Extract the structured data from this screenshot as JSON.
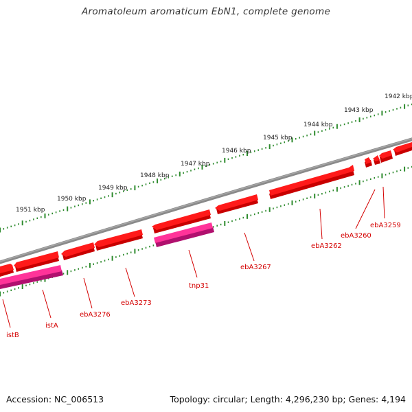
{
  "title": "Aromatoleum aromaticum EbN1, complete genome",
  "footer": {
    "accession": "Accession: NC_006513",
    "summary": "Topology: circular; Length: 4,296,230 bp; Genes: 4,194"
  },
  "scale_ticks": [
    "1942 kbp",
    "1943 kbp",
    "1944 kbp",
    "1945 kbp",
    "1946 kbp",
    "1947 kbp",
    "1948 kbp",
    "1949 kbp",
    "1950 kbp",
    "1951 kbp"
  ],
  "gene_labels": [
    "ebA3259",
    "ebA3260",
    "ebA3262",
    "ebA3267",
    "tnp31",
    "ebA3273",
    "ebA3276",
    "istA",
    "istB"
  ],
  "colors": {
    "backbone": "#7a7a7a",
    "gene_fill": "#ff0000",
    "gene_shadow": "#c80000",
    "insertion_fill": "#ff3399",
    "insertion_shadow": "#b0106e",
    "tick": "#2e8b2e",
    "label_red": "#d40000"
  }
}
